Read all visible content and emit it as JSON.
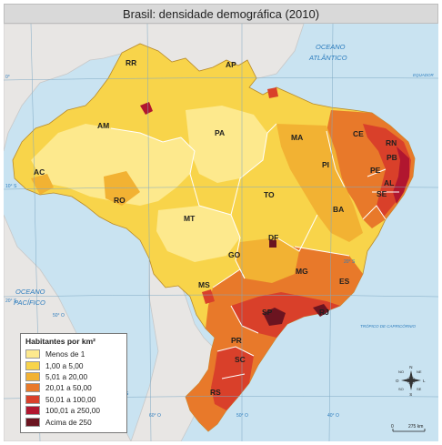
{
  "title": "Brasil: densidade demográfica (2010)",
  "colors": {
    "ocean": "#c9e3f1",
    "foreign_land": "#e8e6e4",
    "density_menos_1": "#fde98d",
    "density_1_5": "#f8d44a",
    "density_5_20": "#f2b233",
    "density_20_50": "#e8792a",
    "density_50_100": "#d9402a",
    "density_100_250": "#b1162f",
    "density_acima_250": "#6b1420"
  },
  "labels": {
    "ocean_atlantic_line1": "OCEANO",
    "ocean_atlantic_line2": "ATLÂNTICO",
    "ocean_pacific_line1": "OCEANO",
    "ocean_pacific_line2": "PACÍFICO",
    "equator": "EQUADOR",
    "tropic": "TRÓPICO DE CAPRICÓRNIO",
    "lat_0": "0°",
    "lat_10s": "10° S",
    "lat_20s_left": "20° S",
    "lat_20s_right": "20° S",
    "lat_20s_mid": "20° S",
    "lon_60w": "60° O",
    "lon_50w": "50° O",
    "lon_40w": "40° O",
    "lon_50w_top": "50° O",
    "states": [
      "RR",
      "AP",
      "AM",
      "PA",
      "MA",
      "CE",
      "RN",
      "PB",
      "PE",
      "AL",
      "SE",
      "PI",
      "BA",
      "TO",
      "AC",
      "RO",
      "MT",
      "DF",
      "GO",
      "MG",
      "ES",
      "MS",
      "SP",
      "RJ",
      "PR",
      "SC",
      "RS"
    ]
  },
  "legend": {
    "title": "Habitantes por km²",
    "items": [
      {
        "label": "Menos de 1",
        "color": "#fde98d"
      },
      {
        "label": "1,00 a 5,00",
        "color": "#f8d44a"
      },
      {
        "label": "5,01 a 20,00",
        "color": "#f2b233"
      },
      {
        "label": "20,01 a 50,00",
        "color": "#e8792a"
      },
      {
        "label": "50,01 a 100,00",
        "color": "#d9402a"
      },
      {
        "label": "100,01 a 250,00",
        "color": "#b1162f"
      },
      {
        "label": "Acima de 250",
        "color": "#6b1420"
      }
    ]
  },
  "compass": {
    "n": "N",
    "ne": "NE",
    "l": "L",
    "se": "SE",
    "s": "S",
    "so": "SO",
    "o": "O",
    "no": "NO"
  },
  "scale": {
    "zero": "0",
    "distance": "275 km"
  }
}
